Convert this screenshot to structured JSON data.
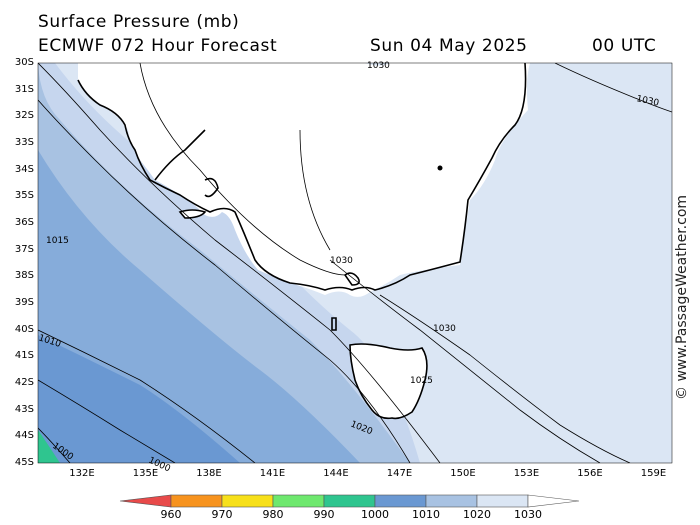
{
  "header": {
    "title": "Surface Pressure (mb)",
    "model": "ECMWF 072 Hour Forecast",
    "date": "Sun 04 May 2025",
    "time": "00 UTC"
  },
  "watermark": "© www.PassageWeather.com",
  "axes": {
    "latitudes": [
      "30S",
      "31S",
      "32S",
      "33S",
      "34S",
      "35S",
      "36S",
      "37S",
      "38S",
      "39S",
      "40S",
      "41S",
      "42S",
      "43S",
      "44S",
      "45S"
    ],
    "longitudes": [
      "132E",
      "135E",
      "138E",
      "141E",
      "144E",
      "147E",
      "150E",
      "153E",
      "156E",
      "159E"
    ]
  },
  "isobar_labels": [
    "1030",
    "1030",
    "1015",
    "1030",
    "1030",
    "1010",
    "1025",
    "1020",
    "1000",
    "1000"
  ],
  "colorbar": {
    "levels": [
      "960",
      "970",
      "980",
      "990",
      "1000",
      "1010",
      "1020",
      "1030"
    ],
    "colors": [
      "#e84a4a",
      "#f7931e",
      "#f7e01a",
      "#6ee86e",
      "#2fc58f",
      "#6a98d2",
      "#a8c2e2",
      "#dbe6f4",
      "#ffffff"
    ]
  },
  "map_colors": {
    "band_1000": "#2fc58f",
    "band_1005": "#6a98d2",
    "band_1010": "#86acda",
    "band_1015": "#a8c2e2",
    "band_1020": "#c6d6ee",
    "band_1025": "#dbe6f4",
    "land": "#ffffff"
  }
}
